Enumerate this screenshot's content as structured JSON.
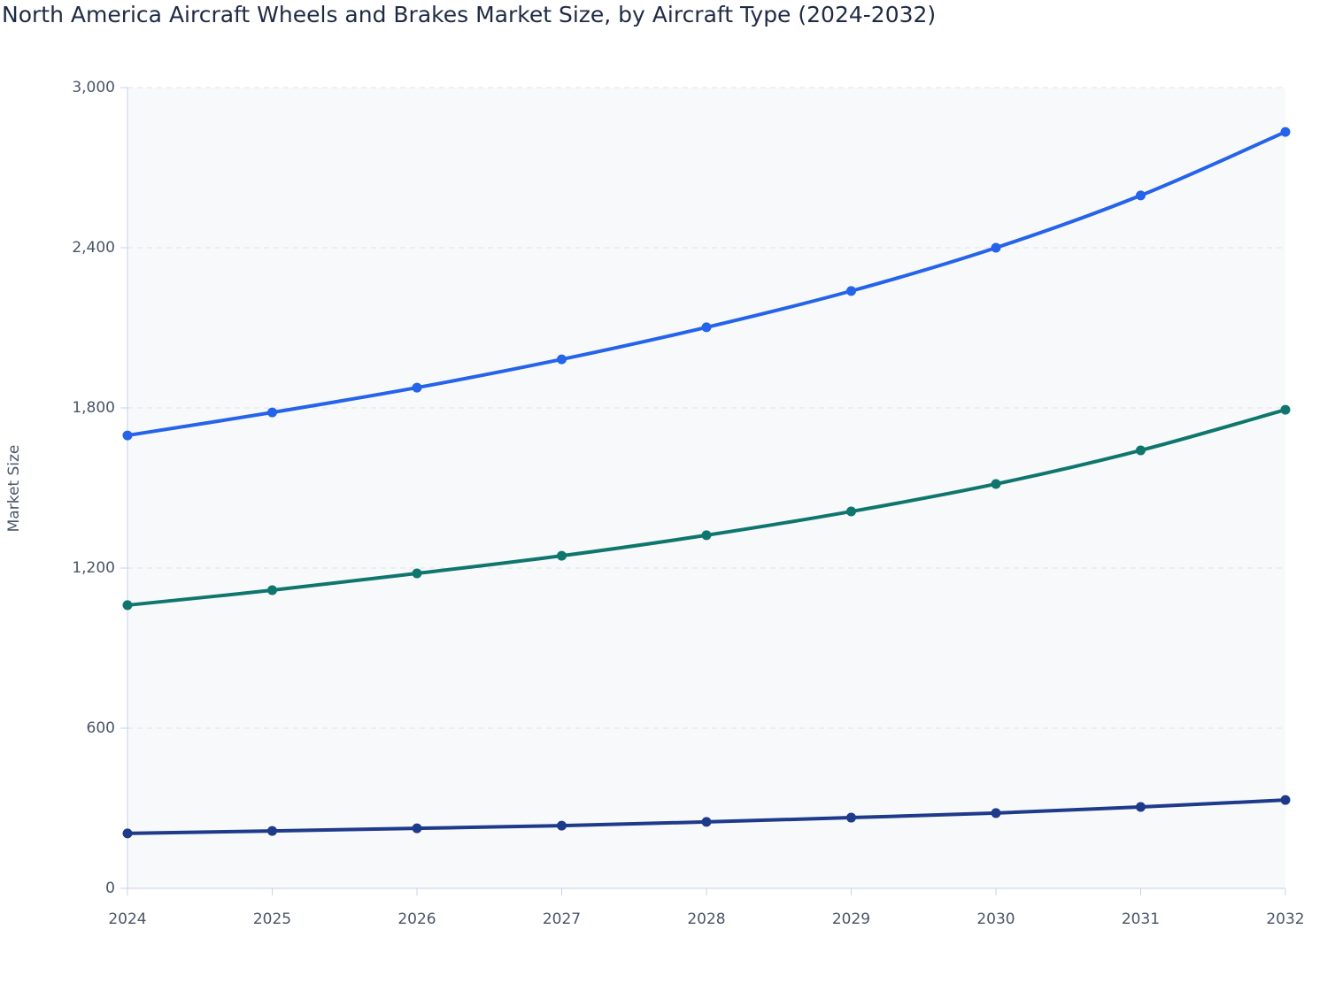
{
  "chart_data": {
    "type": "line",
    "title": "North America Aircraft Wheels and Brakes Market Size, by Aircraft Type (2024-2032)",
    "y_label": "Market Size",
    "categories": [
      "2024",
      "2025",
      "2026",
      "2027",
      "2028",
      "2029",
      "2030",
      "2031",
      "2032"
    ],
    "series": [
      {
        "color": "#2563eb",
        "values": [
          1697,
          1783,
          1876,
          1982,
          2102,
          2238,
          2400,
          2596,
          2834
        ]
      },
      {
        "color": "#0f766e",
        "values": [
          1061,
          1117,
          1180,
          1246,
          1323,
          1412,
          1515,
          1641,
          1793
        ]
      },
      {
        "color": "#1e3a8a",
        "values": [
          206,
          215,
          225,
          235,
          249,
          265,
          282,
          305,
          331
        ]
      }
    ],
    "ylim": [
      0,
      3000
    ],
    "yticks": [
      0,
      600,
      {
        "value": 1200,
        "label": "1,200"
      },
      {
        "value": 1800,
        "label": "1,800"
      },
      {
        "value": 2400,
        "label": "2,400"
      },
      {
        "value": 3000,
        "label": "3,000"
      }
    ],
    "grid": true
  }
}
